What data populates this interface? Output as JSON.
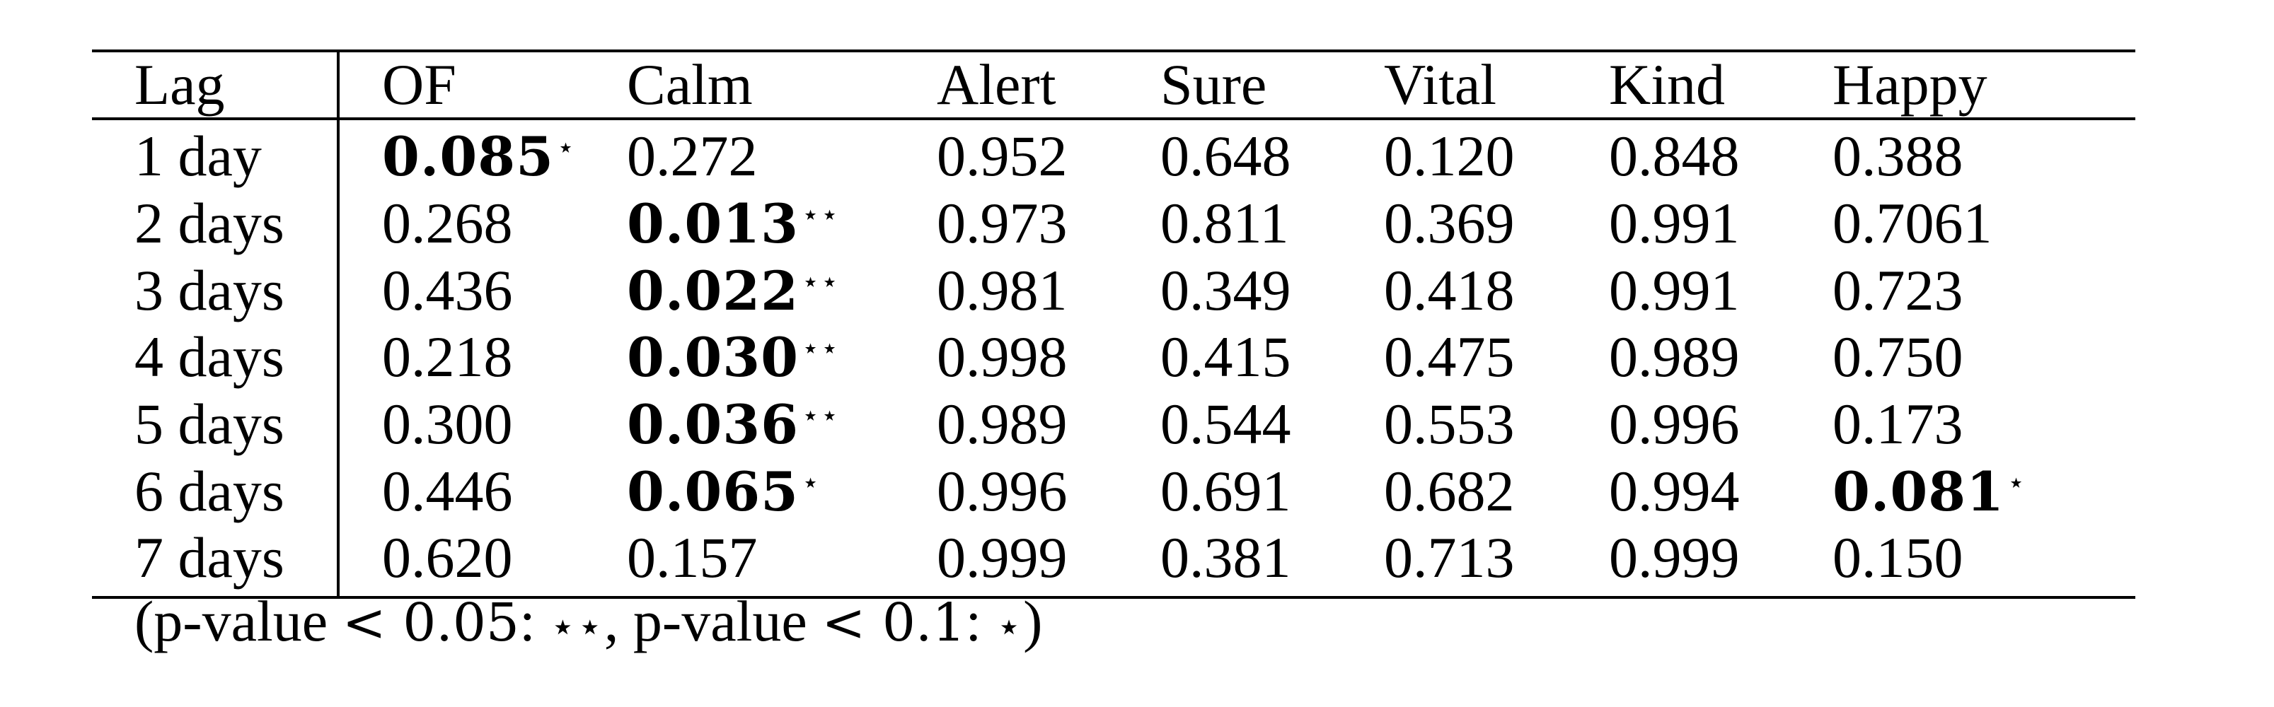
{
  "table": {
    "columns": [
      "Lag",
      "OF",
      "Calm",
      "Alert",
      "Sure",
      "Vital",
      "Kind",
      "Happy"
    ],
    "rows": [
      {
        "lag": "1 day",
        "cells": [
          {
            "v": "0.085",
            "sig": "⋆"
          },
          {
            "v": "0.272"
          },
          {
            "v": "0.952"
          },
          {
            "v": "0.648"
          },
          {
            "v": "0.120"
          },
          {
            "v": "0.848"
          },
          {
            "v": "0.388"
          }
        ]
      },
      {
        "lag": "2 days",
        "cells": [
          {
            "v": "0.268"
          },
          {
            "v": "0.013",
            "sig": "⋆⋆"
          },
          {
            "v": "0.973"
          },
          {
            "v": "0.811"
          },
          {
            "v": "0.369"
          },
          {
            "v": "0.991"
          },
          {
            "v": "0.7061"
          }
        ]
      },
      {
        "lag": "3 days",
        "cells": [
          {
            "v": "0.436"
          },
          {
            "v": "0.022",
            "sig": "⋆⋆"
          },
          {
            "v": "0.981"
          },
          {
            "v": "0.349"
          },
          {
            "v": "0.418"
          },
          {
            "v": "0.991"
          },
          {
            "v": "0.723"
          }
        ]
      },
      {
        "lag": "4 days",
        "cells": [
          {
            "v": "0.218"
          },
          {
            "v": "0.030",
            "sig": "⋆⋆"
          },
          {
            "v": "0.998"
          },
          {
            "v": "0.415"
          },
          {
            "v": "0.475"
          },
          {
            "v": "0.989"
          },
          {
            "v": "0.750"
          }
        ]
      },
      {
        "lag": "5 days",
        "cells": [
          {
            "v": "0.300"
          },
          {
            "v": "0.036",
            "sig": "⋆⋆"
          },
          {
            "v": "0.989"
          },
          {
            "v": "0.544"
          },
          {
            "v": "0.553"
          },
          {
            "v": "0.996"
          },
          {
            "v": "0.173"
          }
        ]
      },
      {
        "lag": "6 days",
        "cells": [
          {
            "v": "0.446"
          },
          {
            "v": "0.065",
            "sig": "⋆"
          },
          {
            "v": "0.996"
          },
          {
            "v": "0.691"
          },
          {
            "v": "0.682"
          },
          {
            "v": "0.994"
          },
          {
            "v": "0.081",
            "sig": "⋆"
          }
        ]
      },
      {
        "lag": "7 days",
        "cells": [
          {
            "v": "0.620"
          },
          {
            "v": "0.157"
          },
          {
            "v": "0.999"
          },
          {
            "v": "0.381"
          },
          {
            "v": "0.713"
          },
          {
            "v": "0.999"
          },
          {
            "v": "0.150"
          }
        ]
      }
    ]
  },
  "footnote": {
    "open": "(p-value ",
    "lt1": "<",
    "thr1": " 0.05",
    "colon1": ": ",
    "star1": "⋆⋆",
    "mid": ", p-value ",
    "lt2": "<",
    "thr2": " 0.1",
    "colon2": ": ",
    "star2": "⋆",
    "close": ")"
  }
}
